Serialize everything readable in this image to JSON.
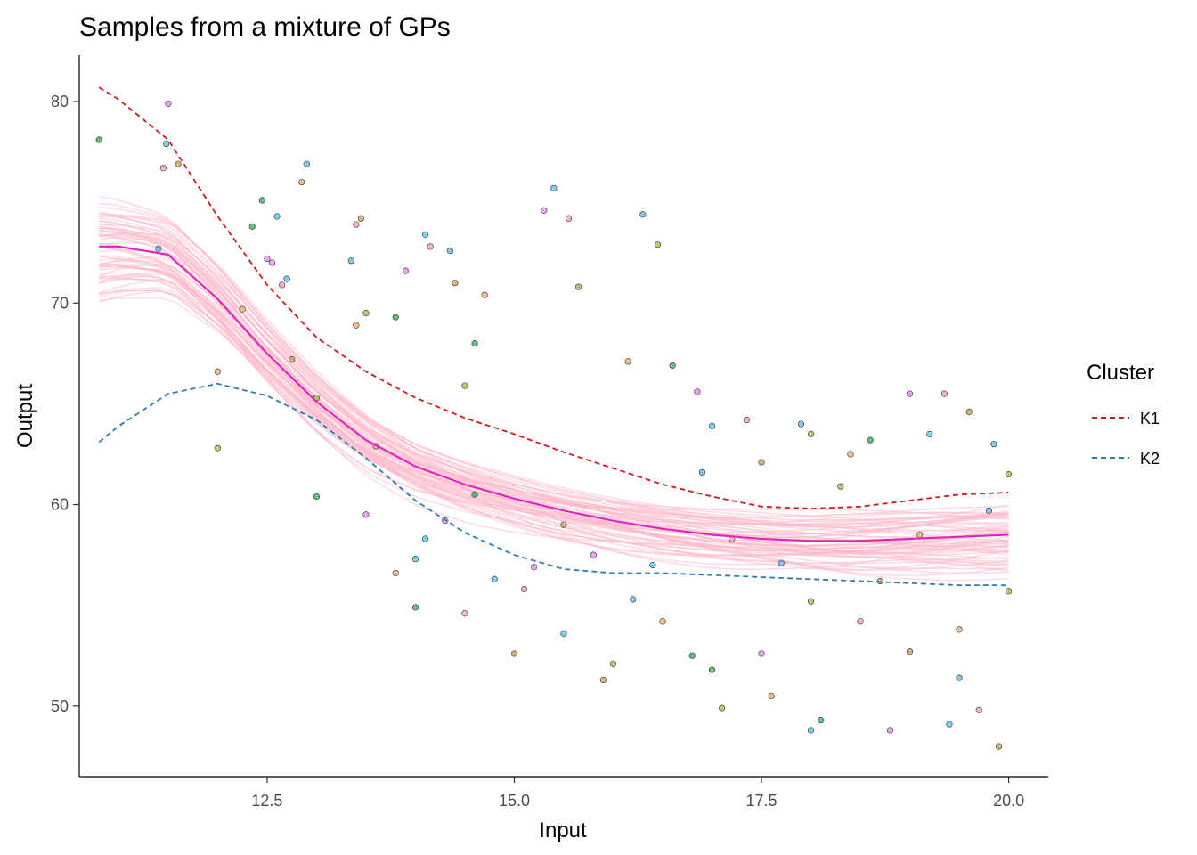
{
  "chart_data": {
    "type": "scatter",
    "title": "Samples from a mixture of GPs",
    "xlabel": "Input",
    "ylabel": "Output",
    "xlim": [
      10.6,
      20.4
    ],
    "ylim": [
      46.5,
      82.3
    ],
    "xticks": [
      12.5,
      15.0,
      17.5,
      20.0
    ],
    "xtick_labels": [
      "12.5",
      "15.0",
      "17.5",
      "20.0"
    ],
    "yticks": [
      50,
      60,
      70,
      80
    ],
    "ytick_labels": [
      "50",
      "60",
      "70",
      "80"
    ],
    "grid": false,
    "legend": {
      "title": "Cluster",
      "position": "right",
      "entries": [
        {
          "label": "K1",
          "color": "#cc1b1b",
          "style": "dashed"
        },
        {
          "label": "K2",
          "color": "#2f7bb0",
          "style": "dashed"
        }
      ]
    },
    "colors": {
      "mean": "#dd1fbf",
      "samples": "#ffb6c8",
      "K1": "#cc1b1b",
      "K2": "#2f7bb0",
      "point_palette": [
        "#3fae63",
        "#e48ff0",
        "#5ac8f0",
        "#f5a0c4",
        "#c7a25c",
        "#64b8e8",
        "#9fbf50",
        "#f0b070"
      ]
    },
    "series": [
      {
        "name": "K1",
        "x": [
          10.8,
          11.0,
          11.5,
          12.0,
          12.5,
          13.0,
          13.5,
          14.0,
          14.5,
          15.0,
          15.5,
          16.0,
          16.5,
          17.0,
          17.5,
          18.0,
          18.5,
          19.0,
          19.5,
          20.0
        ],
        "y": [
          80.7,
          80.1,
          78.1,
          74.3,
          70.9,
          68.3,
          66.6,
          65.3,
          64.3,
          63.5,
          62.6,
          61.8,
          61.0,
          60.4,
          59.9,
          59.8,
          59.9,
          60.2,
          60.5,
          60.6
        ]
      },
      {
        "name": "K2",
        "x": [
          10.8,
          11.0,
          11.5,
          12.0,
          12.5,
          13.0,
          13.5,
          14.0,
          14.5,
          15.0,
          15.5,
          16.0,
          16.5,
          17.0,
          17.5,
          18.0,
          18.5,
          19.0,
          19.5,
          20.0
        ],
        "y": [
          63.1,
          63.9,
          65.5,
          66.0,
          65.4,
          64.2,
          62.3,
          60.2,
          58.6,
          57.5,
          56.8,
          56.6,
          56.6,
          56.5,
          56.4,
          56.3,
          56.2,
          56.1,
          56.0,
          56.0
        ]
      },
      {
        "name": "Mean",
        "x": [
          10.8,
          11.0,
          11.5,
          12.0,
          12.5,
          13.0,
          13.5,
          14.0,
          14.5,
          15.0,
          15.5,
          16.0,
          16.5,
          17.0,
          17.5,
          18.0,
          18.5,
          19.0,
          19.5,
          20.0
        ],
        "y": [
          72.8,
          72.8,
          72.4,
          70.2,
          67.5,
          65.1,
          63.2,
          61.9,
          61.0,
          60.3,
          59.7,
          59.2,
          58.8,
          58.5,
          58.3,
          58.2,
          58.2,
          58.3,
          58.4,
          58.5
        ]
      }
    ],
    "observations": {
      "x": [
        10.8,
        11.5,
        11.48,
        11.45,
        11.6,
        11.4,
        12.0,
        12.25,
        12.35,
        12.5,
        12.6,
        12.65,
        12.75,
        12.9,
        13.0,
        12.85,
        12.45,
        12.55,
        12.7,
        13.4,
        13.45,
        13.35,
        13.5,
        13.4,
        13.8,
        13.9,
        14.1,
        14.15,
        14.4,
        14.35,
        14.5,
        14.7,
        14.6,
        15.3,
        15.4,
        15.55,
        15.65,
        16.3,
        16.45,
        16.15,
        16.6,
        16.85,
        17.0,
        17.35,
        17.5,
        17.9,
        18.0,
        18.4,
        18.6,
        19.0,
        19.2,
        19.35,
        19.6,
        19.85,
        20.0,
        12.0,
        13.0,
        13.5,
        14.0,
        14.5,
        15.0,
        15.5,
        16.0,
        16.5,
        17.0,
        17.5,
        18.0,
        18.5,
        19.0,
        19.5,
        20.0,
        13.8,
        14.0,
        14.3,
        14.8,
        15.1,
        15.9,
        16.2,
        17.1,
        17.6,
        18.1,
        18.8,
        19.4,
        19.7,
        19.9,
        17.7,
        18.0,
        19.5,
        16.8,
        15.2,
        14.1,
        13.6,
        15.5,
        16.9,
        18.3,
        19.1,
        14.6,
        15.8,
        16.4,
        17.2,
        18.7,
        19.8
      ],
      "y": [
        78.1,
        79.9,
        77.9,
        76.7,
        76.9,
        72.7,
        62.8,
        69.7,
        73.8,
        72.2,
        74.3,
        70.9,
        67.2,
        76.9,
        65.3,
        76.0,
        75.1,
        72.0,
        71.2,
        73.9,
        74.2,
        72.1,
        69.5,
        68.9,
        69.3,
        71.6,
        73.4,
        72.8,
        71.0,
        72.6,
        65.9,
        70.4,
        68.0,
        74.6,
        75.7,
        74.2,
        70.8,
        74.4,
        72.9,
        67.1,
        66.9,
        65.6,
        63.9,
        64.2,
        62.1,
        64.0,
        63.5,
        62.5,
        63.2,
        65.5,
        63.5,
        65.5,
        64.6,
        63.0,
        61.5,
        66.6,
        60.4,
        59.5,
        57.3,
        54.6,
        52.6,
        53.6,
        52.1,
        54.2,
        51.8,
        52.6,
        48.8,
        54.2,
        52.7,
        51.4,
        55.7,
        56.6,
        54.9,
        59.2,
        56.3,
        55.8,
        51.3,
        55.3,
        49.9,
        50.5,
        49.3,
        48.8,
        49.1,
        49.8,
        48.0,
        57.1,
        55.2,
        53.8,
        52.5,
        56.9,
        58.3,
        62.9,
        59.0,
        61.6,
        60.9,
        58.5,
        60.5,
        57.5,
        57.0,
        58.3,
        56.2,
        59.7
      ]
    }
  }
}
